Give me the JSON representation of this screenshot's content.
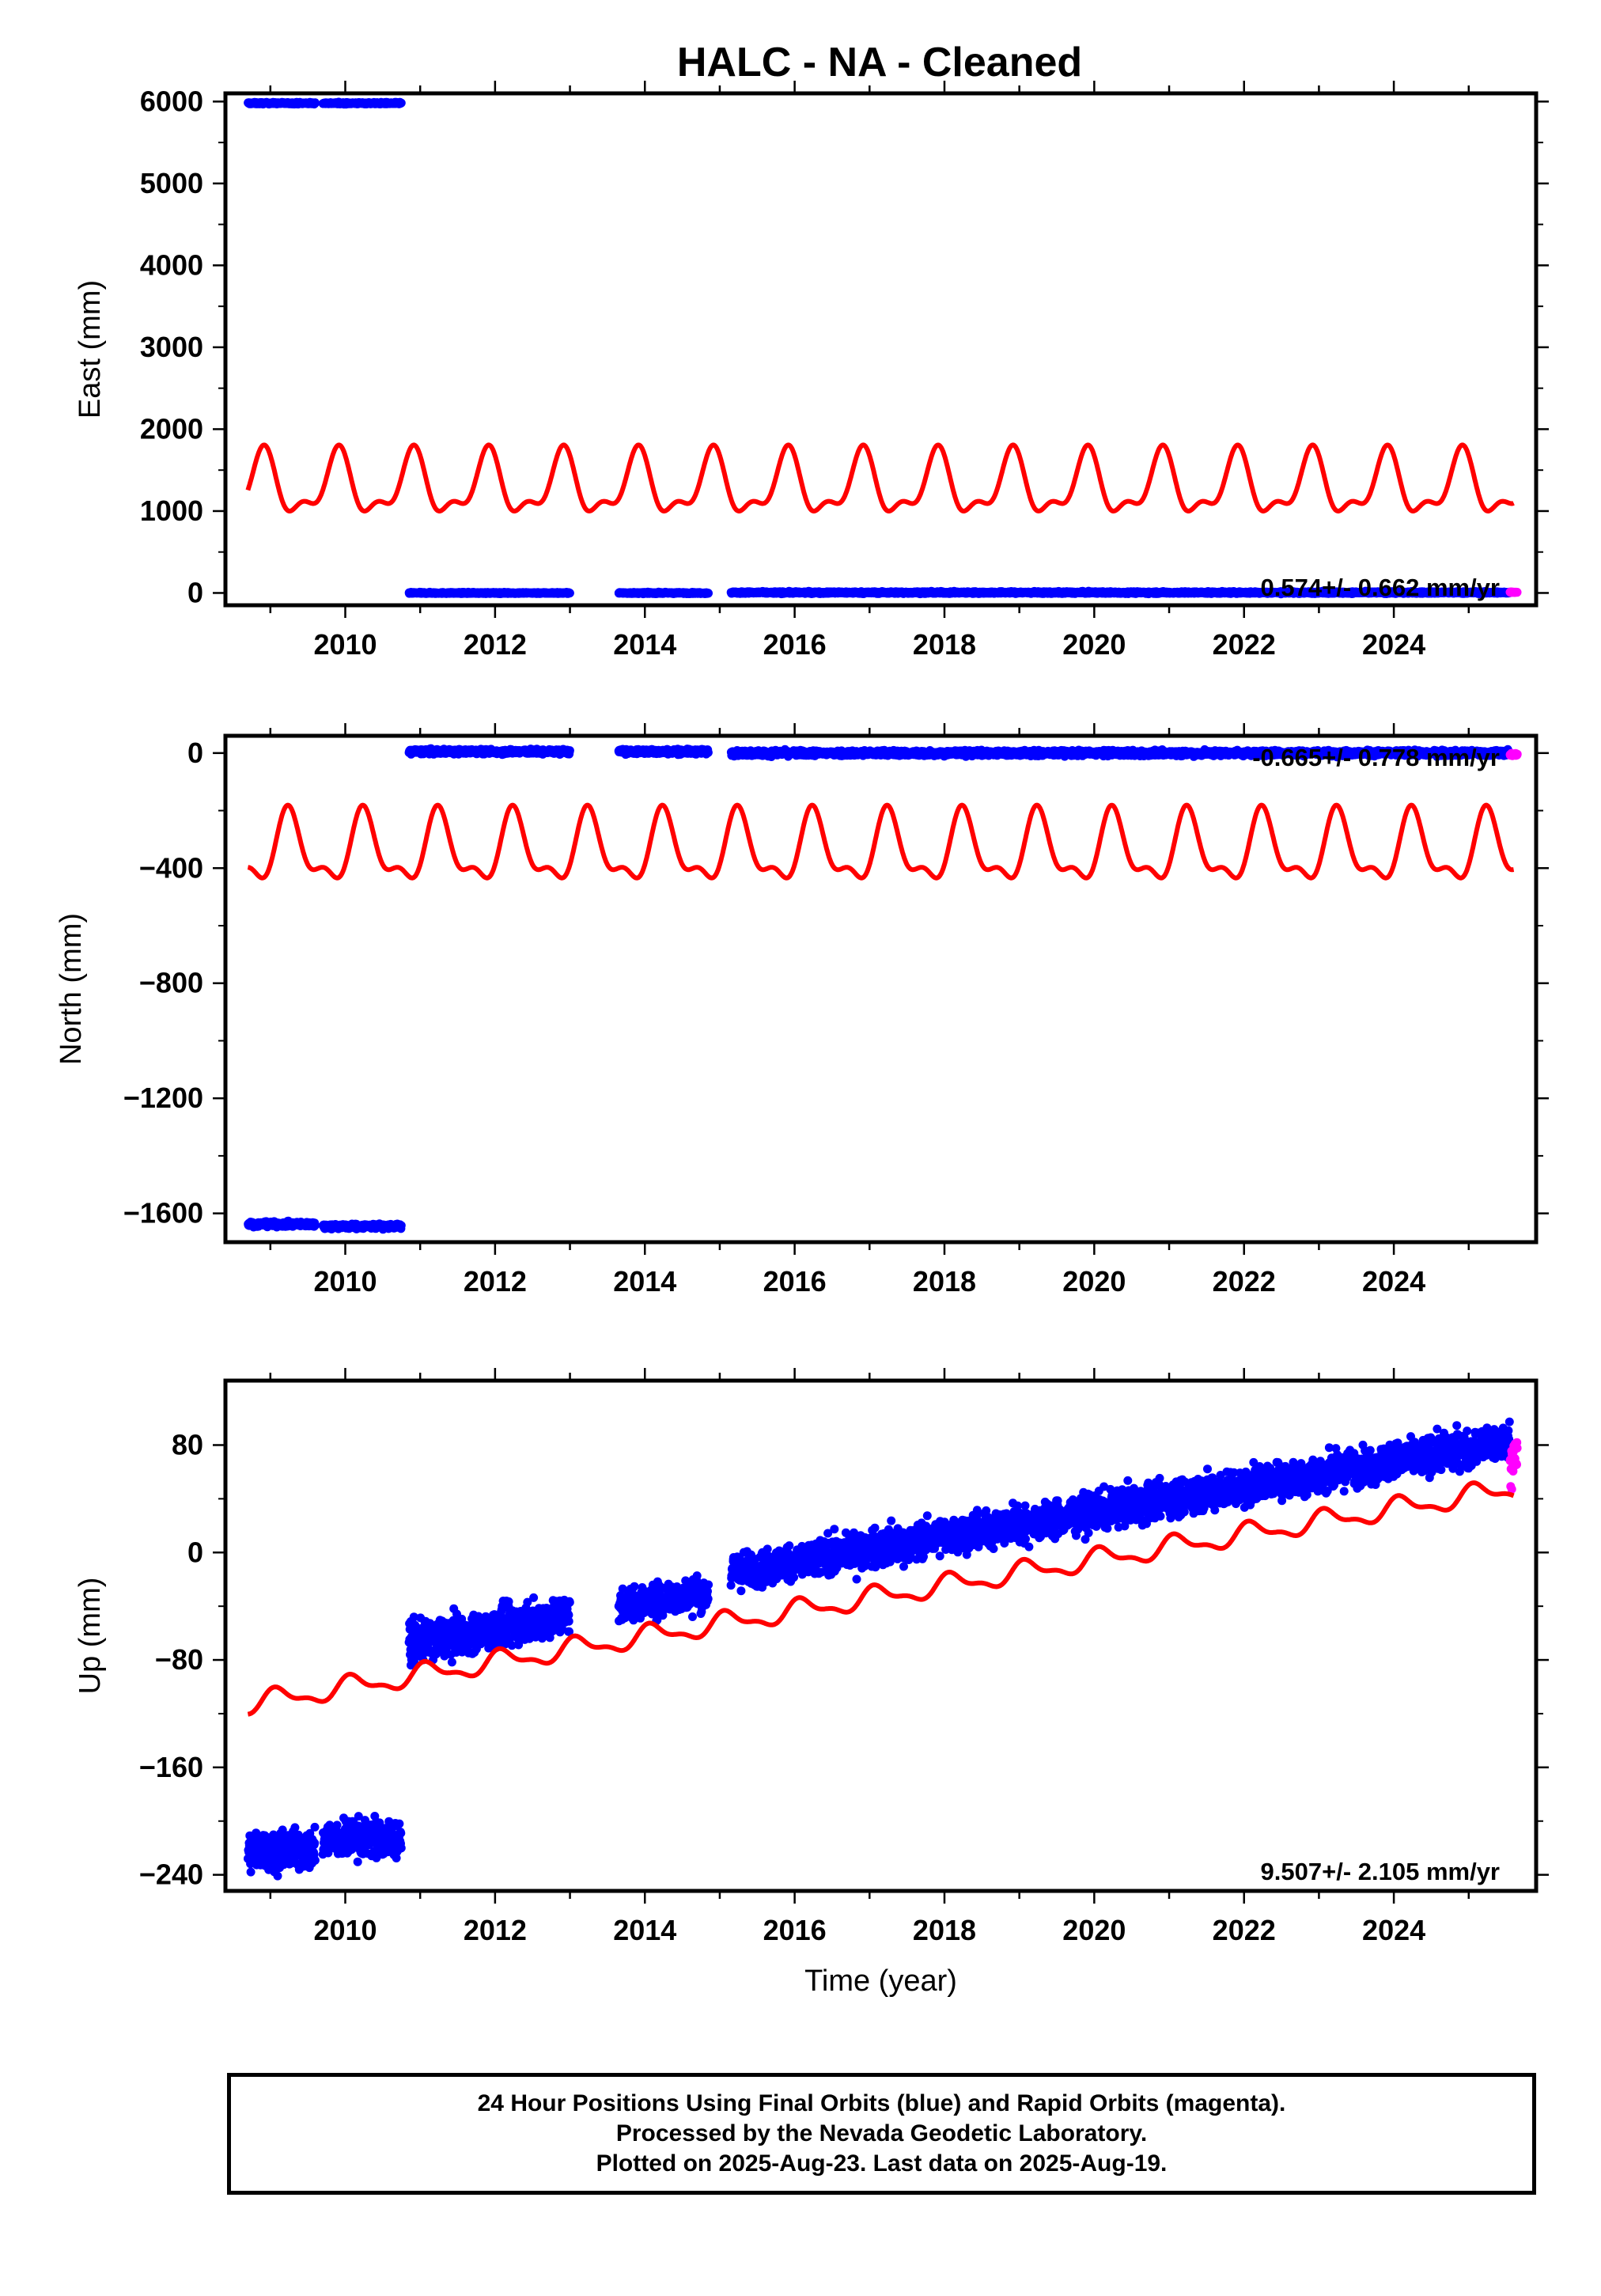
{
  "title": "HALC  - NA - Cleaned",
  "colors": {
    "final": "#0000ff",
    "rapid": "#ff00ff",
    "model": "#ff0000",
    "axis": "#000000"
  },
  "chart_data": [
    {
      "type": "scatter",
      "panel": "east",
      "ylabel": "East (mm)",
      "xlabel": "",
      "xlim": [
        2008.4,
        2025.9
      ],
      "ylim": [
        -150,
        6100
      ],
      "xticks": [
        2010,
        2012,
        2014,
        2016,
        2018,
        2020,
        2022,
        2024
      ],
      "yticks": [
        0,
        1000,
        2000,
        3000,
        4000,
        5000,
        6000
      ],
      "ytick_labels": [
        "0",
        "1000",
        "2000",
        "3000",
        "4000",
        "5000",
        "6000"
      ],
      "rate_label": "0.574+/- 0.662 mm/yr",
      "series": [
        {
          "kind": "final",
          "segments": [
            {
              "x0": 2008.7,
              "x1": 2009.6,
              "y": 5980,
              "spread": 10
            },
            {
              "x0": 2009.7,
              "x1": 2010.75,
              "y": 5980,
              "spread": 10
            },
            {
              "x0": 2010.85,
              "x1": 2013.0,
              "y": 0,
              "spread": 8
            },
            {
              "x0": 2013.65,
              "x1": 2014.85,
              "y": 0,
              "spread": 8
            },
            {
              "x0": 2015.15,
              "x1": 2025.55,
              "y": 5,
              "spread": 12
            }
          ]
        },
        {
          "kind": "rapid",
          "segments": [
            {
              "x0": 2025.55,
              "x1": 2025.65,
              "y": 10,
              "spread": 5
            }
          ]
        },
        {
          "kind": "model",
          "offset_start": 1300,
          "slope": 0,
          "amp1": 350,
          "amp2": 160,
          "phase1": 0.35,
          "phase2": 1.2,
          "x0": 2008.7,
          "x1": 2025.6
        }
      ]
    },
    {
      "type": "scatter",
      "panel": "north",
      "ylabel": "North (mm)",
      "xlabel": "",
      "xlim": [
        2008.4,
        2025.9
      ],
      "ylim": [
        -1700,
        60
      ],
      "xticks": [
        2010,
        2012,
        2014,
        2016,
        2018,
        2020,
        2022,
        2024
      ],
      "yticks": [
        0,
        -400,
        -800,
        -1200,
        -1600
      ],
      "ytick_labels": [
        "0",
        "−400",
        "−800",
        "−1200",
        "−1600"
      ],
      "rate_label": "-0.665+/- 0.778 mm/yr",
      "series": [
        {
          "kind": "final",
          "segments": [
            {
              "x0": 2008.7,
              "x1": 2009.6,
              "y": -1638,
              "spread": 8
            },
            {
              "x0": 2009.7,
              "x1": 2010.75,
              "y": -1645,
              "spread": 8
            },
            {
              "x0": 2010.85,
              "x1": 2013.0,
              "y": 5,
              "spread": 8
            },
            {
              "x0": 2013.65,
              "x1": 2014.85,
              "y": 5,
              "spread": 8
            },
            {
              "x0": 2015.15,
              "x1": 2025.55,
              "y": 0,
              "spread": 9
            }
          ]
        },
        {
          "kind": "rapid",
          "segments": [
            {
              "x0": 2025.55,
              "x1": 2025.65,
              "y": -5,
              "spread": 5
            }
          ]
        },
        {
          "kind": "model",
          "offset_start": -340,
          "slope": 0,
          "amp1": 110,
          "amp2": 50,
          "phase1": 0.0,
          "phase2": 0.9,
          "x0": 2008.7,
          "x1": 2025.6
        }
      ]
    },
    {
      "type": "scatter",
      "panel": "up",
      "ylabel": "Up (mm)",
      "xlabel": "Time (year)",
      "xlim": [
        2008.4,
        2025.9
      ],
      "ylim": [
        -252,
        128
      ],
      "xticks": [
        2010,
        2012,
        2014,
        2016,
        2018,
        2020,
        2022,
        2024
      ],
      "yticks": [
        80,
        0,
        -80,
        -160,
        -240
      ],
      "ytick_labels": [
        "80",
        "0",
        "−80",
        "−160",
        "−240"
      ],
      "rate_label": "9.507+/- 2.105 mm/yr",
      "series": [
        {
          "kind": "final",
          "segments": [
            {
              "x0": 2008.7,
              "x1": 2009.6,
              "y": -222,
              "spread": 14
            },
            {
              "x0": 2009.7,
              "x1": 2010.75,
              "y": -213,
              "spread": 14
            },
            {
              "x0": 2010.85,
              "x1": 2013.0,
              "y": -68,
              "spread": 14,
              "trend": 10
            },
            {
              "x0": 2013.65,
              "x1": 2014.85,
              "y": -40,
              "spread": 12,
              "trend": 9
            },
            {
              "x0": 2015.15,
              "x1": 2025.55,
              "y": -15,
              "spread": 13,
              "trend": 9.4
            }
          ]
        },
        {
          "kind": "rapid",
          "segments": [
            {
              "x0": 2025.55,
              "x1": 2025.65,
              "y": 70,
              "spread": 18
            }
          ]
        },
        {
          "kind": "model",
          "offset_start": -113,
          "slope": 9.5,
          "amp1": 7,
          "amp2": 3,
          "phase1": 0.15,
          "phase2": 0.6,
          "x0": 2008.7,
          "x1": 2025.6
        }
      ]
    }
  ],
  "footer": {
    "line1": "24 Hour Positions Using Final Orbits (blue) and Rapid Orbits (magenta).",
    "line2": "Processed by the Nevada Geodetic Laboratory.",
    "line3": "Plotted on 2025-Aug-23. Last data on 2025-Aug-19."
  }
}
